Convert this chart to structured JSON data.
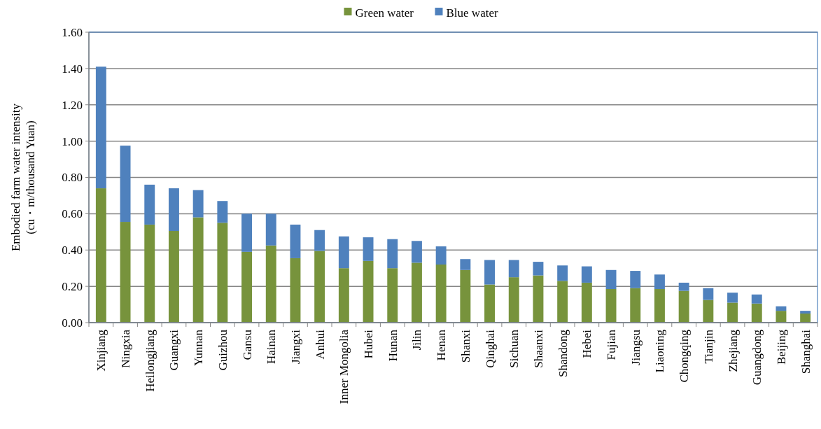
{
  "chart_data": {
    "type": "bar",
    "stacked": true,
    "ylabel": "Embodied farm water intensity\n(cu・m/thousand Yuan)",
    "categories": [
      "Xinjiang",
      "Ningxia",
      "Heilongjiang",
      "Guangxi",
      "Yunnan",
      "Guizhou",
      "Gansu",
      "Hainan",
      "Jiangxi",
      "Anhui",
      "Inner Mongolia",
      "Hubei",
      "Hunan",
      "Jilin",
      "Henan",
      "Shanxi",
      "Qinghai",
      "Sichuan",
      "Shaanxi",
      "Shandong",
      "Hebei",
      "Fujian",
      "Jiangsu",
      "Liaoning",
      "Chongqing",
      "Tianjin",
      "Zhejiang",
      "Guangdong",
      "Beijing",
      "Shanghai"
    ],
    "series": [
      {
        "name": "Green water",
        "color": "#77933c",
        "values": [
          0.74,
          0.555,
          0.54,
          0.505,
          0.58,
          0.55,
          0.39,
          0.425,
          0.355,
          0.395,
          0.3,
          0.34,
          0.3,
          0.33,
          0.32,
          0.29,
          0.21,
          0.25,
          0.26,
          0.23,
          0.22,
          0.185,
          0.19,
          0.185,
          0.175,
          0.125,
          0.11,
          0.105,
          0.065,
          0.05
        ]
      },
      {
        "name": "Blue water",
        "color": "#4f81bd",
        "values": [
          0.67,
          0.42,
          0.22,
          0.235,
          0.15,
          0.12,
          0.21,
          0.175,
          0.185,
          0.115,
          0.175,
          0.13,
          0.16,
          0.12,
          0.1,
          0.06,
          0.135,
          0.095,
          0.075,
          0.085,
          0.09,
          0.105,
          0.095,
          0.08,
          0.045,
          0.065,
          0.055,
          0.05,
          0.025,
          0.015
        ]
      }
    ],
    "ylim": [
      0,
      1.6
    ],
    "yticks": [
      {
        "value": 0,
        "label": "0.00"
      },
      {
        "value": 0.2,
        "label": "0.20"
      },
      {
        "value": 0.4,
        "label": "0.40"
      },
      {
        "value": 0.6,
        "label": "0.60"
      },
      {
        "value": 0.8,
        "label": "0.80"
      },
      {
        "value": 1,
        "label": "1.00"
      },
      {
        "value": 1.2,
        "label": "1.20"
      },
      {
        "value": 1.4,
        "label": "1.40"
      },
      {
        "value": 1.6,
        "label": "1.60"
      }
    ],
    "grid": "y",
    "legend": "top"
  }
}
